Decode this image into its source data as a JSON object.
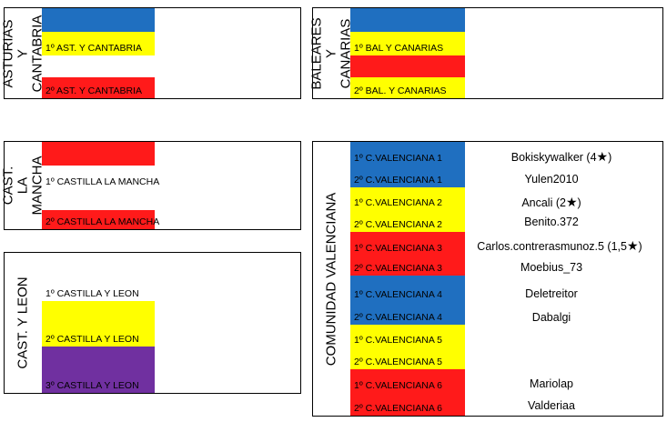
{
  "groups": {
    "asturias": {
      "label": "ASTURIAS Y CANTABRIA",
      "slots": [
        "",
        "1º AST. Y CANTABRIA",
        "",
        "2º AST. Y CANTABRIA"
      ]
    },
    "baleares": {
      "label": "BALEARES Y CANARIAS",
      "slots": [
        "",
        "1º BAL Y CANARIAS",
        "",
        "2º BAL. Y CANARIAS"
      ]
    },
    "castilla_mancha": {
      "label": "CAST. LA MANCHA",
      "slots": [
        "",
        "1º CASTILLA LA MANCHA",
        "",
        "2º CASTILLA LA MANCHA"
      ]
    },
    "castilla_leon": {
      "label": "CAST. Y LEON",
      "slots": [
        "1º CASTILLA Y LEON",
        "",
        "2º CASTILLA Y LEON",
        "",
        "3º CASTILLA Y LEON"
      ]
    },
    "valenciana": {
      "label": "COMUNIDAD VALENCIANA",
      "slots": [
        "1º C.VALENCIANA 1",
        "2º C.VALENCIANA 1",
        "1º C.VALENCIANA 2",
        "2º C.VALENCIANA 2",
        "1º C.VALENCIANA 3",
        "2º C.VALENCIANA 3",
        "1º C.VALENCIANA 4",
        "2º C.VALENCIANA 4",
        "1º C.VALENCIANA 5",
        "2º C.VALENCIANA 5",
        "1º C.VALENCIANA 6",
        "2º C.VALENCIANA 6"
      ],
      "players": [
        {
          "name": "Bokiskywalker (4",
          "star": "★",
          "after": ")"
        },
        {
          "name": "Yulen2010",
          "star": "",
          "after": ""
        },
        {
          "name": "Ancali (2",
          "star": "★",
          "after": ")"
        },
        {
          "name": "Benito.372",
          "star": "",
          "after": ""
        },
        {
          "name": "Carlos.contrerasmunoz.5 (1,5",
          "star": "★",
          "after": ")"
        },
        {
          "name": "Moebius_73",
          "star": "",
          "after": ""
        },
        {
          "name": "Deletreitor",
          "star": "",
          "after": ""
        },
        {
          "name": "Dabalgi",
          "star": "",
          "after": ""
        },
        {
          "name": "",
          "star": "",
          "after": ""
        },
        {
          "name": "",
          "star": "",
          "after": ""
        },
        {
          "name": "Mariolap",
          "star": "",
          "after": ""
        },
        {
          "name": "Valderiaa",
          "star": "",
          "after": ""
        }
      ]
    }
  },
  "colors": {
    "blue": "#1F6FC0",
    "yellow": "#FFFF00",
    "red": "#FF1A1A",
    "purple": "#7030A0"
  }
}
